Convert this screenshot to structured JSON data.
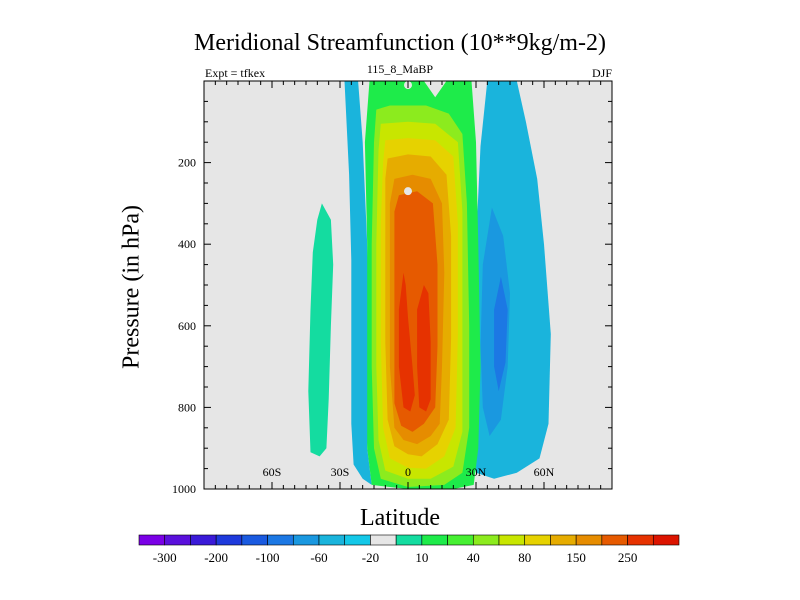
{
  "chart_data": {
    "type": "contour",
    "title": "Meridional Streamfunction (10**9kg/m-2)",
    "left_label": "Expt = tfkex",
    "center_label": "115_8_MaBP",
    "right_label": "DJF",
    "xlabel": "Latitude",
    "ylabel": "Pressure (in hPa)",
    "xlim": [
      -90,
      90
    ],
    "ylim": [
      1000,
      0
    ],
    "x_ticks": [
      {
        "value": -60,
        "label": "60S"
      },
      {
        "value": -30,
        "label": "30S"
      },
      {
        "value": 0,
        "label": "0"
      },
      {
        "value": 30,
        "label": "30N"
      },
      {
        "value": 60,
        "label": "60N"
      }
    ],
    "y_ticks": [
      {
        "value": 200,
        "label": "200"
      },
      {
        "value": 400,
        "label": "400"
      },
      {
        "value": 600,
        "label": "600"
      },
      {
        "value": 800,
        "label": "800"
      },
      {
        "value": 1000,
        "label": "1000"
      }
    ],
    "background_color": "#e6e6e6",
    "colorbar": {
      "colors": [
        "#7a00e6",
        "#5a10dc",
        "#3a1ad8",
        "#1e3adc",
        "#1a5ae0",
        "#1c78e4",
        "#1a98e0",
        "#1ab4dc",
        "#14c8e8",
        "#e6e6e6",
        "#14dca0",
        "#1eeb4a",
        "#46f032",
        "#8ceb1e",
        "#c8e600",
        "#e6d200",
        "#e6ac00",
        "#e68c00",
        "#e65a00",
        "#e63200",
        "#dc1400"
      ],
      "labels": [
        "-300",
        "-200",
        "-100",
        "-60",
        "-20",
        "10",
        "40",
        "80",
        "150",
        "250"
      ]
    },
    "regions": [
      {
        "color": "#14dca0",
        "points": [
          [
            -38,
            300
          ],
          [
            -34,
            340
          ],
          [
            -33,
            450
          ],
          [
            -34,
            600
          ],
          [
            -35,
            780
          ],
          [
            -36,
            900
          ],
          [
            -39,
            920
          ],
          [
            -43,
            910
          ],
          [
            -44,
            760
          ],
          [
            -43,
            560
          ],
          [
            -42,
            420
          ],
          [
            -40,
            340
          ]
        ]
      },
      {
        "color": "#1ab4dc",
        "points": [
          [
            -28,
            0
          ],
          [
            -22,
            0
          ],
          [
            -20,
            150
          ],
          [
            -18,
            400
          ],
          [
            -17,
            650
          ],
          [
            -17,
            800
          ],
          [
            -18,
            900
          ],
          [
            -16,
            990
          ],
          [
            -20,
            975
          ],
          [
            -24,
            940
          ],
          [
            -25,
            840
          ],
          [
            -25,
            660
          ],
          [
            -25,
            440
          ],
          [
            -26,
            230
          ]
        ]
      },
      {
        "color": "#1ab4dc",
        "points": [
          [
            48,
            0
          ],
          [
            35,
            0
          ],
          [
            32,
            160
          ],
          [
            30,
            400
          ],
          [
            28,
            700
          ],
          [
            28,
            900
          ],
          [
            30,
            960
          ],
          [
            38,
            975
          ],
          [
            48,
            960
          ],
          [
            58,
            925
          ],
          [
            62,
            840
          ],
          [
            63,
            620
          ],
          [
            60,
            400
          ],
          [
            57,
            240
          ],
          [
            52,
            100
          ]
        ]
      },
      {
        "color": "#1a98e0",
        "points": [
          [
            37,
            310
          ],
          [
            33,
            450
          ],
          [
            32,
            650
          ],
          [
            33,
            800
          ],
          [
            36,
            870
          ],
          [
            41,
            830
          ],
          [
            44,
            700
          ],
          [
            45,
            520
          ],
          [
            42,
            380
          ]
        ]
      },
      {
        "color": "#1c78e4",
        "points": [
          [
            41,
            480
          ],
          [
            38,
            560
          ],
          [
            38,
            700
          ],
          [
            40,
            760
          ],
          [
            43,
            690
          ],
          [
            44,
            560
          ]
        ]
      },
      {
        "color": "#1eeb4a",
        "points": [
          [
            -17,
            0
          ],
          [
            7,
            0
          ],
          [
            12,
            40
          ],
          [
            17,
            0
          ],
          [
            28,
            0
          ],
          [
            30,
            150
          ],
          [
            31,
            400
          ],
          [
            32,
            700
          ],
          [
            31,
            900
          ],
          [
            29,
            990
          ],
          [
            20,
            1000
          ],
          [
            0,
            1000
          ],
          [
            -16,
            990
          ],
          [
            -18,
            900
          ],
          [
            -18,
            700
          ],
          [
            -18,
            400
          ],
          [
            -19,
            150
          ]
        ]
      },
      {
        "color": "#8ceb1e",
        "points": [
          [
            -14,
            70
          ],
          [
            -8,
            60
          ],
          [
            0,
            60
          ],
          [
            8,
            60
          ],
          [
            18,
            80
          ],
          [
            24,
            130
          ],
          [
            26,
            300
          ],
          [
            27,
            600
          ],
          [
            27,
            850
          ],
          [
            24,
            960
          ],
          [
            16,
            990
          ],
          [
            0,
            995
          ],
          [
            -12,
            975
          ],
          [
            -15,
            900
          ],
          [
            -16,
            700
          ],
          [
            -16,
            400
          ],
          [
            -15,
            150
          ]
        ]
      },
      {
        "color": "#c8e600",
        "points": [
          [
            -12,
            105
          ],
          [
            0,
            100
          ],
          [
            12,
            105
          ],
          [
            22,
            150
          ],
          [
            24,
            320
          ],
          [
            24,
            600
          ],
          [
            24,
            860
          ],
          [
            20,
            945
          ],
          [
            10,
            975
          ],
          [
            0,
            975
          ],
          [
            -10,
            955
          ],
          [
            -13,
            880
          ],
          [
            -14,
            700
          ],
          [
            -14,
            400
          ],
          [
            -13,
            170
          ]
        ]
      },
      {
        "color": "#e6d200",
        "points": [
          [
            -10,
            145
          ],
          [
            0,
            140
          ],
          [
            12,
            145
          ],
          [
            20,
            185
          ],
          [
            22,
            350
          ],
          [
            22,
            620
          ],
          [
            21,
            850
          ],
          [
            16,
            920
          ],
          [
            8,
            950
          ],
          [
            0,
            948
          ],
          [
            -8,
            925
          ],
          [
            -11,
            850
          ],
          [
            -12,
            640
          ],
          [
            -12,
            350
          ],
          [
            -11,
            200
          ]
        ]
      },
      {
        "color": "#e6ac00",
        "points": [
          [
            -9,
            190
          ],
          [
            0,
            180
          ],
          [
            10,
            185
          ],
          [
            17,
            230
          ],
          [
            19,
            380
          ],
          [
            19,
            630
          ],
          [
            18,
            830
          ],
          [
            13,
            890
          ],
          [
            6,
            920
          ],
          [
            0,
            915
          ],
          [
            -6,
            895
          ],
          [
            -9,
            830
          ],
          [
            -10,
            640
          ],
          [
            -10,
            380
          ],
          [
            -10,
            240
          ]
        ]
      },
      {
        "color": "#e68c00",
        "points": [
          [
            -6,
            240
          ],
          [
            2,
            230
          ],
          [
            10,
            240
          ],
          [
            15,
            300
          ],
          [
            16,
            470
          ],
          [
            15,
            700
          ],
          [
            14,
            840
          ],
          [
            10,
            870
          ],
          [
            4,
            890
          ],
          [
            -2,
            880
          ],
          [
            -6,
            850
          ],
          [
            -8,
            700
          ],
          [
            -8,
            450
          ],
          [
            -8,
            300
          ]
        ]
      },
      {
        "color": "#e65a00",
        "points": [
          [
            -4,
            280
          ],
          [
            4,
            270
          ],
          [
            11,
            300
          ],
          [
            13,
            450
          ],
          [
            13,
            650
          ],
          [
            12,
            800
          ],
          [
            7,
            840
          ],
          [
            2,
            860
          ],
          [
            -3,
            845
          ],
          [
            -6,
            790
          ],
          [
            -6,
            600
          ],
          [
            -6,
            420
          ],
          [
            -6,
            320
          ]
        ]
      },
      {
        "color": "#e63200",
        "points": [
          [
            -2,
            470
          ],
          [
            -1,
            500
          ],
          [
            0,
            580
          ],
          [
            2,
            700
          ],
          [
            3,
            770
          ],
          [
            1,
            810
          ],
          [
            -2,
            800
          ],
          [
            -4,
            700
          ],
          [
            -4,
            560
          ]
        ]
      },
      {
        "color": "#e63200",
        "points": [
          [
            7,
            500
          ],
          [
            9,
            520
          ],
          [
            10,
            640
          ],
          [
            10,
            780
          ],
          [
            8,
            810
          ],
          [
            5,
            800
          ],
          [
            4,
            700
          ],
          [
            4,
            560
          ]
        ]
      }
    ],
    "point_markers": [
      {
        "color": "#e6e6e6",
        "x": 0,
        "y": 10
      },
      {
        "color": "#e6e6e6",
        "x": 0,
        "y": 270
      }
    ]
  }
}
